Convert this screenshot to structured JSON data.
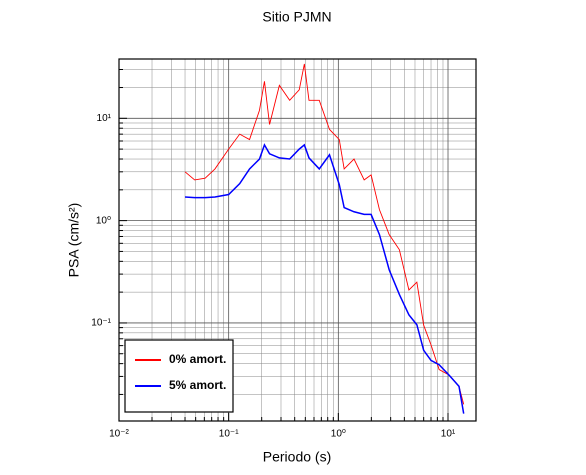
{
  "chart_data": {
    "type": "line",
    "title": "Sitio PJMN",
    "x_label": "Periodo (s)",
    "y_label": "PSA (cm/s²)",
    "x_log": true,
    "y_log": true,
    "grid": true,
    "minor_grid": true,
    "legend_position": "lower left",
    "xlim": [
      0.01,
      18
    ],
    "ylim": [
      0.011,
      38
    ],
    "xticks": [
      {
        "value": 0.01,
        "label": "10⁻²"
      },
      {
        "value": 0.1,
        "label": "10⁻¹"
      },
      {
        "value": 1,
        "label": "10⁰"
      },
      {
        "value": 10,
        "label": "10¹"
      }
    ],
    "yticks": [
      {
        "value": 0.1,
        "label": "10⁻¹"
      },
      {
        "value": 1,
        "label": "10⁰"
      },
      {
        "value": 10,
        "label": "10¹"
      }
    ],
    "x": [
      0.04,
      0.049,
      0.061,
      0.075,
      0.1,
      0.126,
      0.155,
      0.191,
      0.212,
      0.236,
      0.29,
      0.36,
      0.44,
      0.49,
      0.54,
      0.67,
      0.83,
      1.02,
      1.13,
      1.39,
      1.72,
      1.99,
      2.37,
      2.91,
      3.6,
      4.4,
      5.2,
      6.0,
      7.0,
      8.3,
      10.2,
      12.6,
      13.9
    ],
    "series": [
      {
        "name": "0% amort.",
        "color": "#ff0000",
        "values": [
          3.0,
          2.5,
          2.6,
          3.2,
          5,
          7,
          6.2,
          12,
          23,
          8.7,
          21,
          15,
          19,
          34,
          15,
          15,
          7.8,
          6.2,
          3.2,
          4,
          2.5,
          2.8,
          1.28,
          0.73,
          0.52,
          0.21,
          0.25,
          0.095,
          0.061,
          0.035,
          0.031,
          0.024,
          0.016
        ]
      },
      {
        "name": "5% amort.",
        "color": "#0000ff",
        "values": [
          1.7,
          1.68,
          1.68,
          1.7,
          1.8,
          2.3,
          3.2,
          4,
          5.5,
          4.5,
          4.1,
          4,
          5,
          5.5,
          4.1,
          3.2,
          4.4,
          2.25,
          1.34,
          1.22,
          1.15,
          1.15,
          0.73,
          0.33,
          0.19,
          0.12,
          0.096,
          0.054,
          0.043,
          0.039,
          0.031,
          0.024,
          0.013
        ]
      }
    ]
  }
}
